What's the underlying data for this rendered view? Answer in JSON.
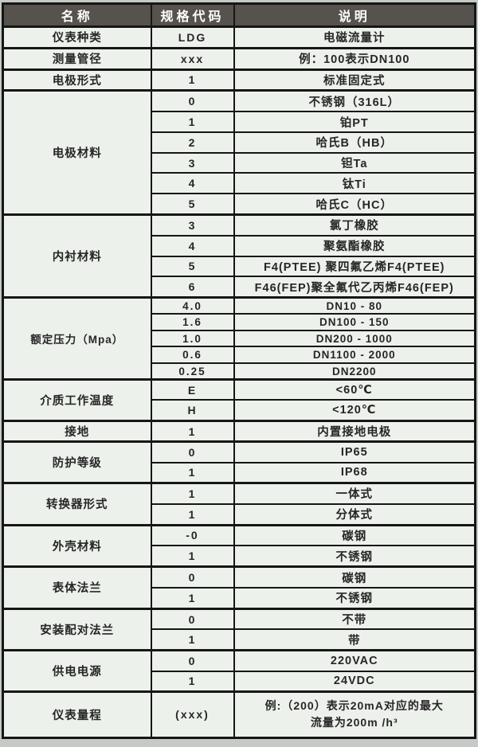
{
  "table": {
    "headers": [
      "名称",
      "规格代码",
      "说明"
    ],
    "colors": {
      "header_bg": "#56524e",
      "header_text": "#ffffff",
      "body_bg": "#edf1ec",
      "border": "#161616",
      "outer_bg": "#c6cac6",
      "text": "#262626"
    },
    "groups": [
      {
        "name": "仪表种类",
        "rows": [
          [
            "LDG",
            "电磁流量计"
          ]
        ]
      },
      {
        "name": "测量管径",
        "rows": [
          [
            "xxx",
            "例：100表示DN100"
          ]
        ]
      },
      {
        "name": "电极形式",
        "rows": [
          [
            "1",
            "标准固定式"
          ]
        ]
      },
      {
        "name": "电极材料",
        "rows": [
          [
            "0",
            "不锈钢（316L）"
          ],
          [
            "1",
            "铂PT"
          ],
          [
            "2",
            "哈氏B（HB）"
          ],
          [
            "3",
            "钽Ta"
          ],
          [
            "4",
            "钛Ti"
          ],
          [
            "5",
            "哈氏C（HC）"
          ]
        ]
      },
      {
        "name": "内衬材料",
        "rows": [
          [
            "3",
            "氯丁橡胶"
          ],
          [
            "4",
            "聚氨酯橡胶"
          ],
          [
            "5",
            "F4(PTEE) 聚四氟乙烯F4(PTEE)"
          ],
          [
            "6",
            "F46(FEP)聚全氟代乙丙烯F46(FEP)"
          ]
        ]
      },
      {
        "name": "额定压力（Mpa）",
        "compact": true,
        "rows": [
          [
            "4.0",
            "DN10 - 80"
          ],
          [
            "1.6",
            "DN100 - 150"
          ],
          [
            "1.0",
            "DN200 - 1000"
          ],
          [
            "0.6",
            "DN1100 - 2000"
          ],
          [
            "0.25",
            "DN2200"
          ]
        ]
      },
      {
        "name": "介质工作温度",
        "rows": [
          [
            "E",
            "<60℃"
          ],
          [
            "H",
            "<120℃"
          ]
        ]
      },
      {
        "name": "接地",
        "rows": [
          [
            "1",
            "内置接地电极"
          ]
        ]
      },
      {
        "name": "防护等级",
        "rows": [
          [
            "0",
            "IP65"
          ],
          [
            "1",
            "IP68"
          ]
        ]
      },
      {
        "name": "转换器形式",
        "rows": [
          [
            "1",
            "一体式"
          ],
          [
            "1",
            "分体式"
          ]
        ]
      },
      {
        "name": "外壳材料",
        "rows": [
          [
            "-0",
            "碳钢"
          ],
          [
            "1",
            "不锈钢"
          ]
        ]
      },
      {
        "name": "表体法兰",
        "rows": [
          [
            "0",
            "碳钢"
          ],
          [
            "1",
            "不锈钢"
          ]
        ]
      },
      {
        "name": "安装配对法兰",
        "rows": [
          [
            "0",
            "不带"
          ],
          [
            "1",
            "带"
          ]
        ]
      },
      {
        "name": "供电电源",
        "rows": [
          [
            "0",
            "220VAC"
          ],
          [
            "1",
            "24VDC"
          ]
        ]
      },
      {
        "name": "仪表量程",
        "tall": true,
        "rows": [
          [
            "(xxx)",
            "例:（200）表示20mA对应的最大\n流量为200m /h³"
          ]
        ]
      }
    ]
  }
}
